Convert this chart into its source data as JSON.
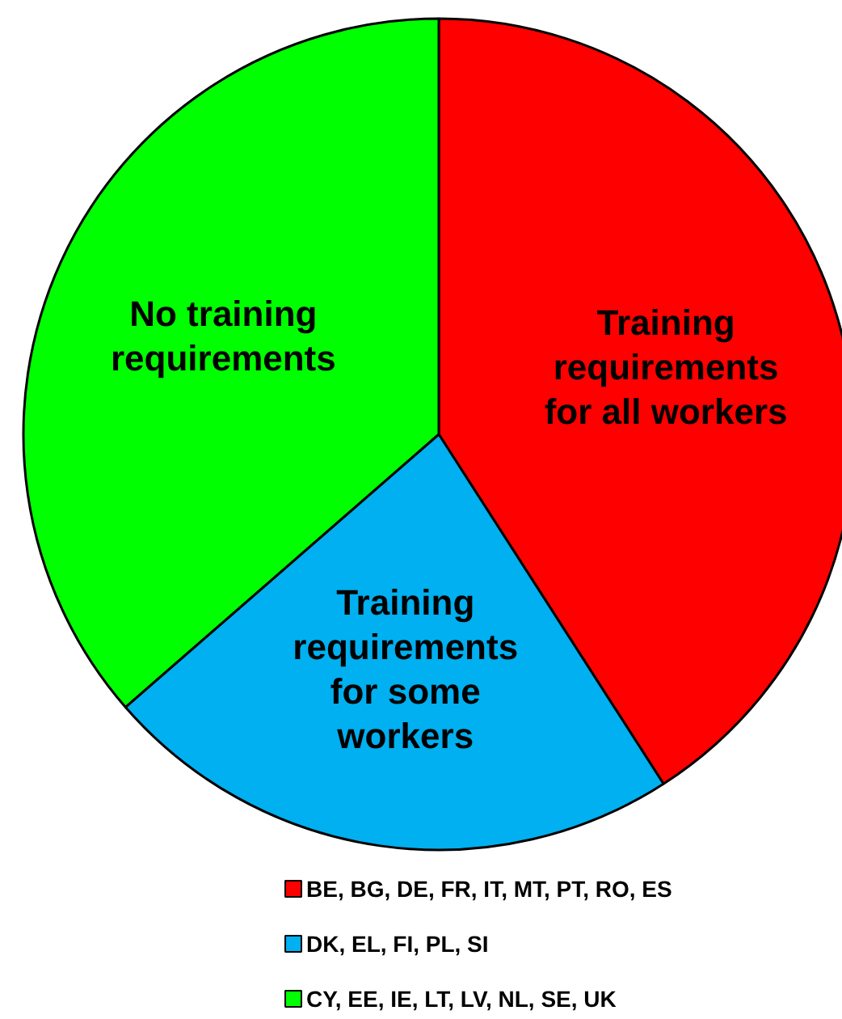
{
  "chart_data": {
    "type": "pie",
    "categories": [
      "BE, BG, DE, FR, IT, MT, PT, RO, ES",
      "DK, EL, FI, PL, SI",
      "CY, EE, IE, LT, LV, NL, SE, UK"
    ],
    "values": [
      40.9,
      22.7,
      36.4
    ],
    "colors": [
      "#ff0000",
      "#00b0f0",
      "#00ff00"
    ],
    "legend": "bottom",
    "annotations": [
      {
        "text": "Training requirements for all workers",
        "x": "BE, BG, DE, FR, IT, MT, PT, RO, ES"
      },
      {
        "text": "Training requirements for some workers",
        "x": "DK, EL, FI, PL, SI"
      },
      {
        "text": "No training requirements",
        "x": "CY, EE, IE, LT, LV, NL, SE, UK"
      }
    ]
  }
}
